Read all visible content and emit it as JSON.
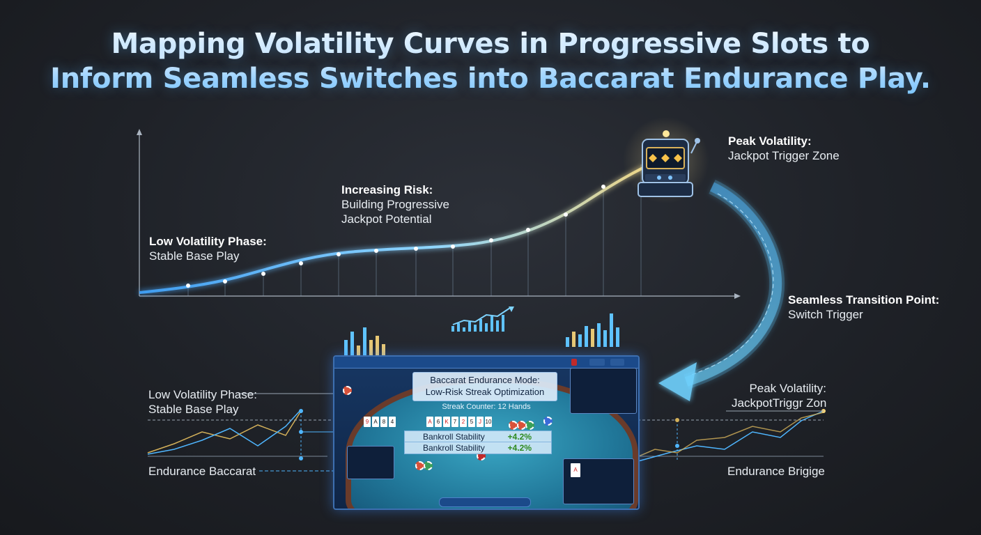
{
  "title": {
    "line1": "Mapping Volatility Curves in Progressive Slots to",
    "line2": "Inform Seamless Switches into Baccarat Endurance Play."
  },
  "annotations": {
    "low_phase": {
      "title": "Low Volatility Phase:",
      "subtitle": "Stable Base Play"
    },
    "increasing": {
      "title": "Increasing Risk:",
      "line2": "Building Progressive",
      "line3": "Jackpot Potential"
    },
    "peak": {
      "title": "Peak Volatility:",
      "subtitle": "Jackpot Trigger Zone"
    },
    "transition": {
      "title": "Seamless Transition Point:",
      "subtitle": "Switch Trigger"
    },
    "lower_left_phase": {
      "title": "Low Volatility Phase:",
      "subtitle": "Stable Base Play"
    },
    "lower_right_peak": {
      "title": "Peak Volatility:",
      "subtitle": "JackpotTriggr Zon"
    },
    "endurance_left": "Endurance Baccarat",
    "endurance_right": "Endurance Brigige"
  },
  "baccarat_panel": {
    "mode_line1": "Baccarat Endurance Mode:",
    "mode_line2": "Low-Risk Streak Optimization",
    "streak_counter": "Streak Counter: 12 Hands",
    "stability_label": "Bankroll Stability",
    "stability_value": "+4.2%",
    "player_cards": [
      "9",
      "A",
      "8",
      "4"
    ],
    "banker_cards": [
      "A",
      "6",
      "K",
      "7",
      "2",
      "5",
      "J",
      "10"
    ]
  },
  "colors": {
    "curve_low": "#4fb6ff",
    "curve_high": "#f5d47a",
    "transition_arrow": "#5cc8ff",
    "panel_border": "#3d6fb0"
  },
  "icons": [
    "slot-machine-icon",
    "transition-arrow-icon",
    "mini-bar-chart-icon"
  ]
}
